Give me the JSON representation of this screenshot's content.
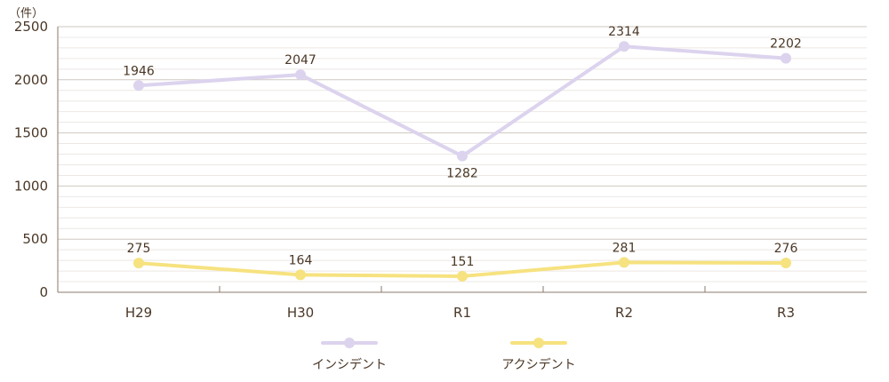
{
  "chart_data": {
    "type": "line",
    "unit_label": "（件）",
    "categories": [
      "H29",
      "H30",
      "R1",
      "R2",
      "R3"
    ],
    "ylim": [
      0,
      2500
    ],
    "yticks": [
      0,
      500,
      1000,
      1500,
      2000,
      2500
    ],
    "minor_grid_step": 100,
    "grid": true,
    "legend_position": "bottom-center",
    "series": [
      {
        "name": "インシデント",
        "values": [
          1946,
          2047,
          1282,
          2314,
          2202
        ],
        "color": "#dcd3ee"
      },
      {
        "name": "アクシデント",
        "values": [
          275,
          164,
          151,
          281,
          276
        ],
        "color": "#f6e27f"
      }
    ],
    "colors": {
      "axis": "#8a7a6a",
      "major_grid": "#cfc8c0",
      "minor_grid": "#ece8e4",
      "text": "#4a3726"
    }
  }
}
